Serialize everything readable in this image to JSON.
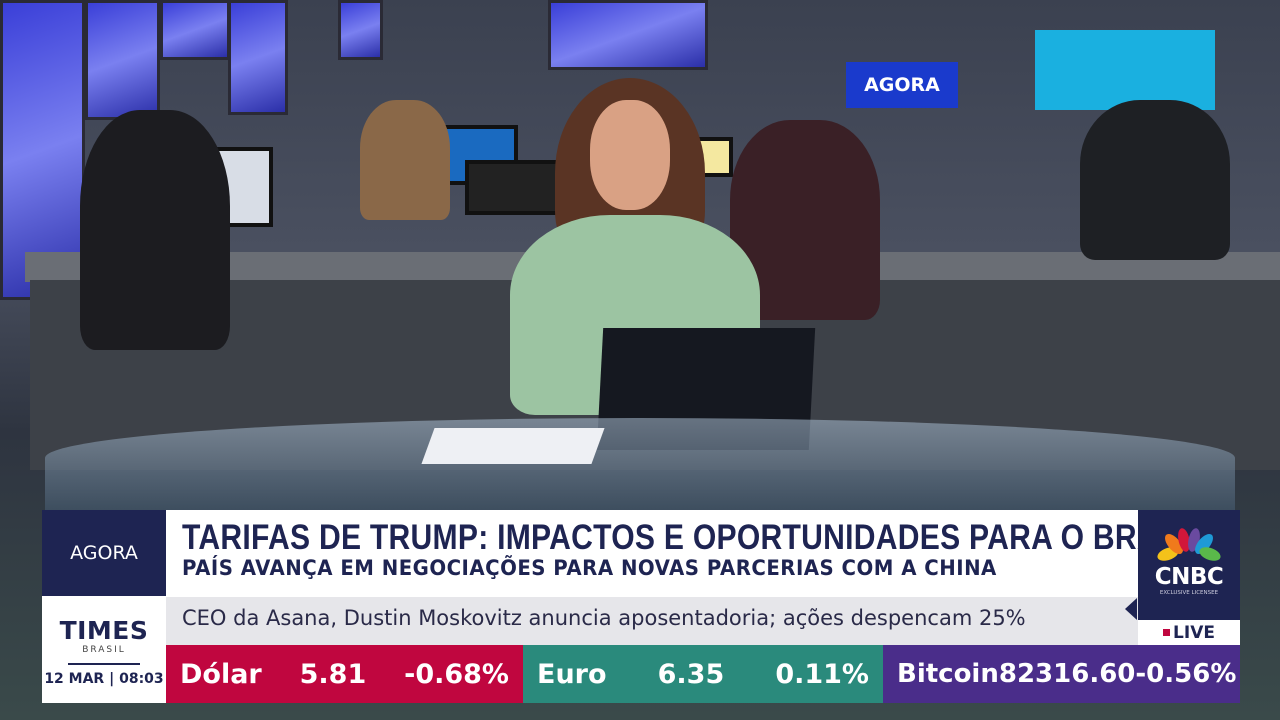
{
  "background_sign": "AGORA",
  "lower_third": {
    "section_label": "AGORA",
    "brand": {
      "name": "TIMES",
      "sub": "BRASIL"
    },
    "date": "12 MAR",
    "time": "08:03",
    "headline": "TARIFAS DE TRUMP: IMPACTOS E OPORTUNIDADES PARA O BRASIL",
    "subheadline": "PAÍS AVANÇA EM NEGOCIAÇÕES PARA NOVAS PARCERIAS COM A CHINA",
    "ticker": "CEO da Asana, Dustin Moskovitz anuncia aposentadoria; ações despencam 25%",
    "network": {
      "logo": "CNBC",
      "license": "EXCLUSIVE LICENSEE",
      "live": "LIVE"
    },
    "markets": [
      {
        "name": "Dólar",
        "value": "5.81",
        "change": "-0.68%",
        "color": "#c0063f"
      },
      {
        "name": "Euro",
        "value": "6.35",
        "change": "0.11%",
        "color": "#2a8a7c"
      },
      {
        "name": "Bitcoin",
        "value": "82316.60",
        "change": "-0.56%",
        "color": "#4a2d8a"
      }
    ]
  }
}
